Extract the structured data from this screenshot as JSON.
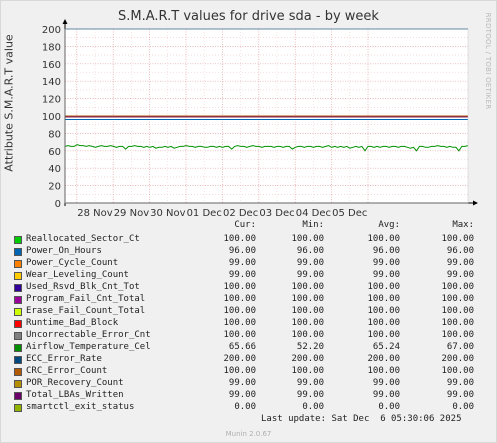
{
  "title": "S.M.A.R.T values for drive sda - by week",
  "ylabel": "Attribute S.M.A.R.T value",
  "watermark": "RRDTOOL / TOBI OETIKER",
  "legend_headers": [
    "Cur:",
    "Min:",
    "Avg:",
    "Max:"
  ],
  "legend": [
    {
      "name": "Reallocated_Sector_Ct",
      "color": "#00cc00",
      "cur": "100.00",
      "min": "100.00",
      "avg": "100.00",
      "max": "100.00"
    },
    {
      "name": "Power_On_Hours",
      "color": "#0066b3",
      "cur": "96.00",
      "min": "96.00",
      "avg": "96.00",
      "max": "96.00"
    },
    {
      "name": "Power_Cycle_Count",
      "color": "#ff8000",
      "cur": "99.00",
      "min": "99.00",
      "avg": "99.00",
      "max": "99.00"
    },
    {
      "name": "Wear_Leveling_Count",
      "color": "#ffcc00",
      "cur": "99.00",
      "min": "99.00",
      "avg": "99.00",
      "max": "99.00"
    },
    {
      "name": "Used_Rsvd_Blk_Cnt_Tot",
      "color": "#330099",
      "cur": "100.00",
      "min": "100.00",
      "avg": "100.00",
      "max": "100.00"
    },
    {
      "name": "Program_Fail_Cnt_Total",
      "color": "#990099",
      "cur": "100.00",
      "min": "100.00",
      "avg": "100.00",
      "max": "100.00"
    },
    {
      "name": "Erase_Fail_Count_Total",
      "color": "#ccff00",
      "cur": "100.00",
      "min": "100.00",
      "avg": "100.00",
      "max": "100.00"
    },
    {
      "name": "Runtime_Bad_Block",
      "color": "#ff0000",
      "cur": "100.00",
      "min": "100.00",
      "avg": "100.00",
      "max": "100.00"
    },
    {
      "name": "Uncorrectable_Error_Cnt",
      "color": "#808080",
      "cur": "100.00",
      "min": "100.00",
      "avg": "100.00",
      "max": "100.00"
    },
    {
      "name": "Airflow_Temperature_Cel",
      "color": "#008f00",
      "cur": "65.66",
      "min": "52.20",
      "avg": "65.24",
      "max": "67.00"
    },
    {
      "name": "ECC_Error_Rate",
      "color": "#00487d",
      "cur": "200.00",
      "min": "200.00",
      "avg": "200.00",
      "max": "200.00"
    },
    {
      "name": "CRC_Error_Count",
      "color": "#b35a00",
      "cur": "100.00",
      "min": "100.00",
      "avg": "100.00",
      "max": "100.00"
    },
    {
      "name": "POR_Recovery_Count",
      "color": "#b38f00",
      "cur": "99.00",
      "min": "99.00",
      "avg": "99.00",
      "max": "99.00"
    },
    {
      "name": "Total_LBAs_Written",
      "color": "#6b006b",
      "cur": "99.00",
      "min": "99.00",
      "avg": "99.00",
      "max": "99.00"
    },
    {
      "name": "smartctl_exit_status",
      "color": "#8fb300",
      "cur": "0.00",
      "min": "0.00",
      "avg": "0.00",
      "max": "0.00"
    }
  ],
  "last_update": "Last update: Sat Dec  6 05:30:06 2025",
  "munin_version": "Munin 2.0.67",
  "chart_data": {
    "type": "line",
    "title": "S.M.A.R.T values for drive sda - by week",
    "ylabel": "Attribute S.M.A.R.T value",
    "xlabel": "",
    "ylim": [
      0,
      200
    ],
    "yticks": [
      0,
      20,
      40,
      60,
      80,
      100,
      120,
      140,
      160,
      180,
      200
    ],
    "xticks": [
      "28 Nov",
      "29 Nov",
      "30 Nov",
      "01 Dec",
      "02 Dec",
      "03 Dec",
      "04 Dec",
      "05 Dec"
    ],
    "grid": true,
    "series": [
      {
        "name": "ECC_Error_Rate",
        "color": "#00487d",
        "constant": 200
      },
      {
        "name": "Reallocated_Sector_Ct",
        "color": "#00cc00",
        "constant": 100
      },
      {
        "name": "Used_Rsvd_Blk_Cnt_Tot",
        "color": "#330099",
        "constant": 100
      },
      {
        "name": "Program_Fail_Cnt_Total",
        "color": "#990099",
        "constant": 100
      },
      {
        "name": "Erase_Fail_Count_Total",
        "color": "#ccff00",
        "constant": 100
      },
      {
        "name": "Runtime_Bad_Block",
        "color": "#ff0000",
        "constant": 100
      },
      {
        "name": "Uncorrectable_Error_Cnt",
        "color": "#808080",
        "constant": 100
      },
      {
        "name": "CRC_Error_Count",
        "color": "#b35a00",
        "constant": 100
      },
      {
        "name": "Power_Cycle_Count",
        "color": "#ff8000",
        "constant": 99
      },
      {
        "name": "Wear_Leveling_Count",
        "color": "#ffcc00",
        "constant": 99
      },
      {
        "name": "POR_Recovery_Count",
        "color": "#b38f00",
        "constant": 99
      },
      {
        "name": "Total_LBAs_Written",
        "color": "#6b006b",
        "constant": 99
      },
      {
        "name": "Power_On_Hours",
        "color": "#0066b3",
        "constant": 96
      },
      {
        "name": "smartctl_exit_status",
        "color": "#8fb300",
        "constant": 0
      },
      {
        "name": "Airflow_Temperature_Cel",
        "color": "#008f00",
        "values": [
          65,
          66,
          65,
          65,
          67,
          66,
          66,
          65,
          66,
          65,
          64,
          65,
          66,
          65,
          65,
          66,
          65,
          64,
          65,
          65,
          62,
          65,
          65,
          66,
          65,
          65,
          64,
          65,
          64,
          65,
          63,
          64,
          64,
          65,
          64,
          65,
          63,
          64,
          65,
          65,
          66,
          65,
          65,
          64,
          65,
          65,
          64,
          64,
          65,
          65,
          64,
          65,
          64,
          65,
          65,
          62,
          65,
          66,
          65,
          65,
          64,
          65,
          66,
          65,
          65,
          64,
          65,
          65,
          65,
          64,
          65,
          65,
          64,
          65,
          65,
          62,
          64,
          65,
          65,
          64,
          65,
          65,
          64,
          65,
          65,
          64,
          65,
          66,
          64,
          65,
          64,
          65,
          64,
          65,
          63,
          64,
          65,
          64,
          65,
          60,
          65,
          65,
          64,
          65,
          64,
          65,
          65,
          64,
          65,
          65,
          64,
          65,
          65,
          64,
          63,
          64,
          60,
          65,
          65,
          64,
          64,
          65,
          65,
          66,
          65,
          65,
          64,
          65,
          64,
          64,
          60,
          65,
          65,
          66
        ]
      }
    ]
  }
}
